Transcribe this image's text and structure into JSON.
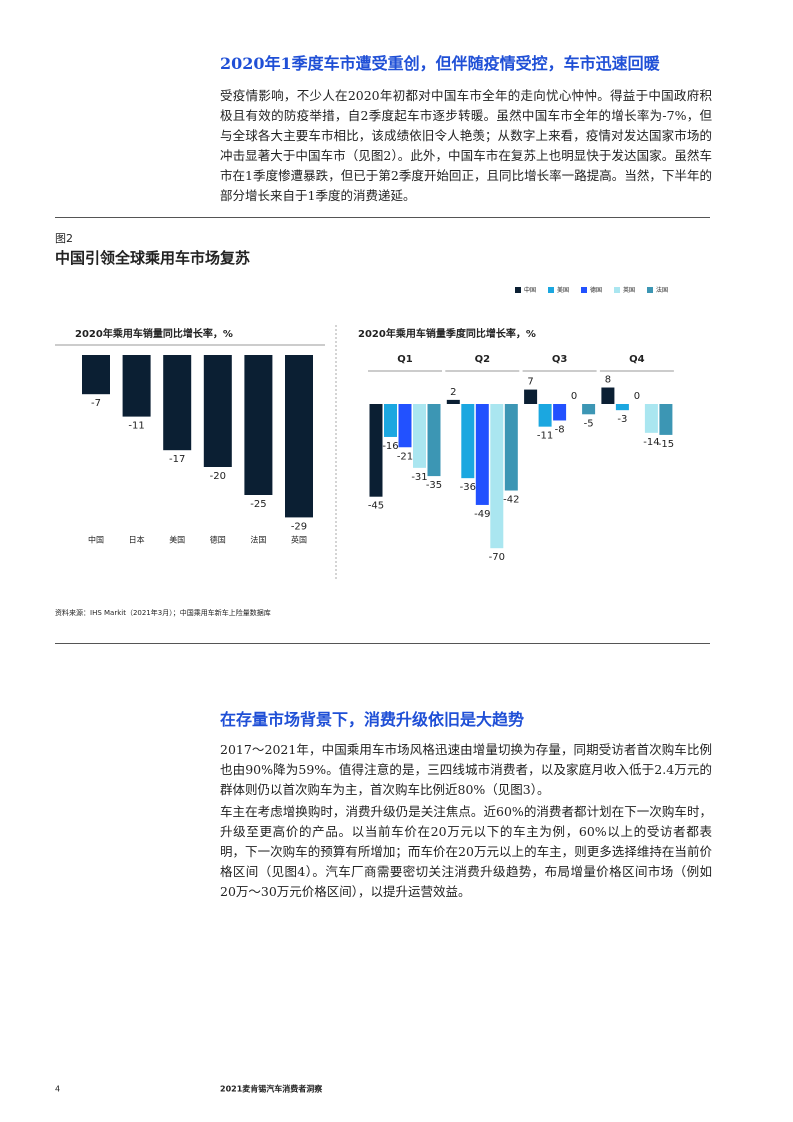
{
  "sections": [
    {
      "heading": "2020年1季度车市遭受重创，但伴随疫情受控，车市迅速回暖",
      "paragraphs": [
        "受疫情影响，不少人在2020年初都对中国车市全年的走向忧心忡忡。得益于中国政府积极且有效的防疫举措，自2季度起车市逐步转暖。虽然中国车市全年的增长率为-7%，但与全球各大主要车市相比，该成绩依旧令人艳羡；从数字上来看，疫情对发达国家市场的冲击显著大于中国车市（见图2）。此外，中国车市在复苏上也明显快于发达国家。虽然车市在1季度惨遭暴跌，但已于第2季度开始回正，且同比增长率一路提高。当然，下半年的部分增长来自于1季度的消费递延。"
      ]
    },
    {
      "heading": "在存量市场背景下，消费升级依旧是大趋势",
      "paragraphs": [
        "2017～2021年，中国乘用车市场风格迅速由增量切换为存量，同期受访者首次购车比例也由90%降为59%。值得注意的是，三四线城市消费者，以及家庭月收入低于2.4万元的群体则仍以首次购车为主，首次购车比例近80%（见图3）。",
        "车主在考虑增换购时，消费升级仍是关注焦点。近60%的消费者都计划在下一次购车时，升级至更高价的产品。以当前车价在20万元以下的车主为例，60%以上的受访者都表明，下一次购车的预算有所增加；而车价在20万元以上的车主，则更多选择维持在当前价格区间（见图4）。汽车厂商需要密切关注消费升级趋势，布局增量价格区间市场（例如20万～30万元价格区间），以提升运营效益。"
      ]
    }
  ],
  "figure": {
    "label": "图2",
    "title": "中国引领全球乘用车市场复苏",
    "source": "资料来源：IHS Markit（2021年3月）；中国乘用车新车上险量数据库"
  },
  "chart_data": [
    {
      "type": "bar",
      "title": "2020年乘用车销量同比增长率，%",
      "categories": [
        "中国",
        "日本",
        "美国",
        "德国",
        "法国",
        "英国"
      ],
      "values": [
        -7,
        -11,
        -17,
        -20,
        -25,
        -29
      ],
      "color": "#0b1f33"
    },
    {
      "type": "grouped-bar",
      "title": "2020年乘用车销量季度同比增长率，%",
      "categories": [
        "Q1",
        "Q2",
        "Q3",
        "Q4"
      ],
      "legend": "top-right",
      "series": [
        {
          "name": "中国",
          "color": "#0b1f33",
          "values": [
            -45,
            2,
            7,
            8
          ]
        },
        {
          "name": "美国",
          "color": "#1ba7e0",
          "values": [
            -16,
            -36,
            -11,
            -3
          ]
        },
        {
          "name": "德国",
          "color": "#2251ff",
          "values": [
            -21,
            -49,
            -8,
            0
          ]
        },
        {
          "name": "英国",
          "color": "#aae6f0",
          "values": [
            -31,
            -70,
            0,
            -14
          ]
        },
        {
          "name": "法国",
          "color": "#3c96b4",
          "values": [
            -35,
            -42,
            -5,
            -15
          ]
        }
      ]
    }
  ],
  "footer": {
    "page": "4",
    "title": "2021麦肯锡汽车消费者洞察"
  }
}
